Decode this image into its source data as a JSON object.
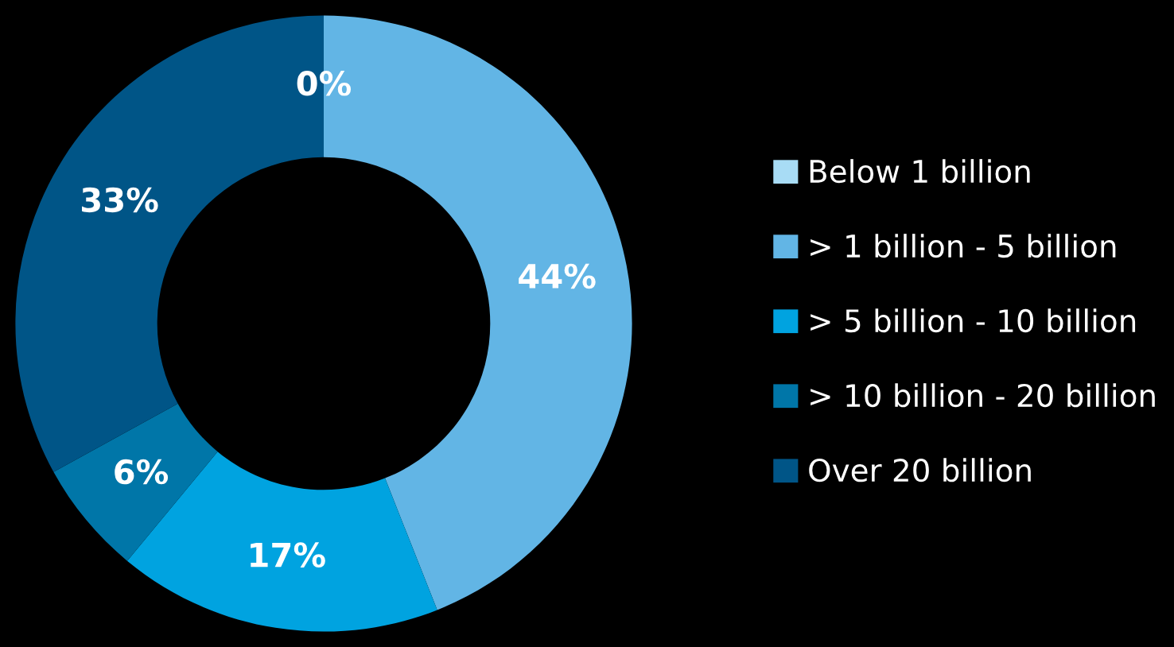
{
  "chart_data": {
    "type": "donut",
    "categories": [
      "Below 1 billion",
      "> 1 billion - 5 billion",
      "> 5 billion - 10 billion",
      "> 10 billion - 20 billion",
      "Over 20 billion"
    ],
    "values": [
      0,
      44,
      17,
      6,
      33
    ],
    "colors": [
      "#a8dcf5",
      "#62b5e5",
      "#00a3e0",
      "#0076a8",
      "#005587"
    ],
    "value_labels": [
      "0%",
      "44%",
      "17%",
      "6%",
      "33%"
    ],
    "legend": "right"
  }
}
